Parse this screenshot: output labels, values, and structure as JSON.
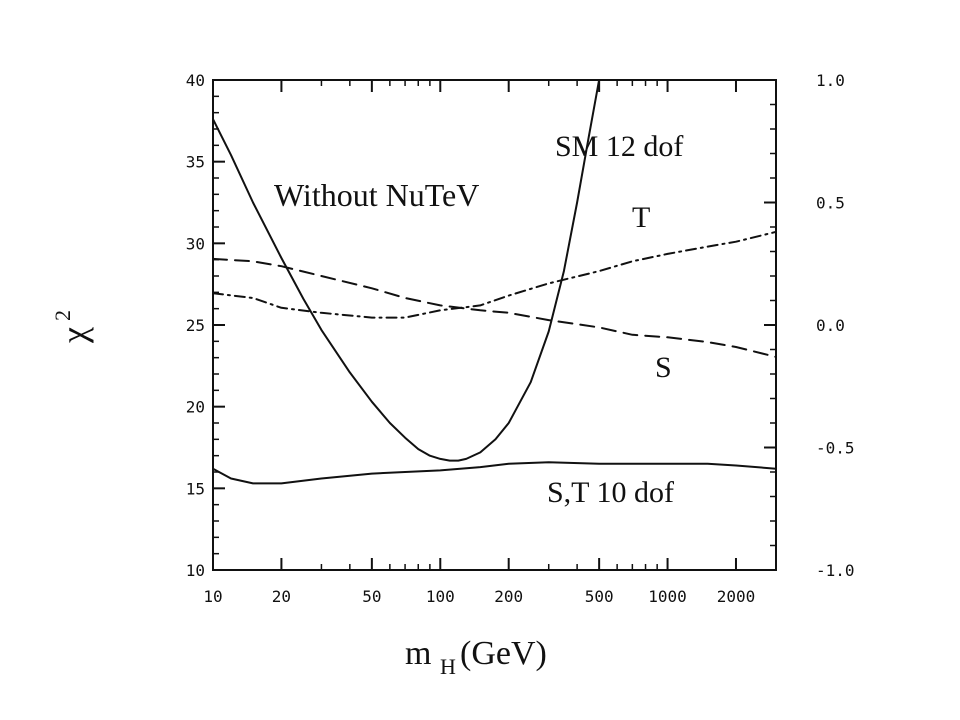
{
  "chart_data": {
    "type": "line",
    "title": "",
    "annotation_main": "Without NuTeV",
    "xlabel": "m_H(GeV)",
    "xlabel_main": "m",
    "xlabel_sub": "H",
    "xlabel_rest": "(GeV)",
    "ylabel": "χ²",
    "ylabel_main": "χ",
    "ylabel_sup": "2",
    "x_scale": "log",
    "xlim": [
      10,
      3000
    ],
    "ylim": [
      10,
      40
    ],
    "y2lim": [
      -1.0,
      1.0
    ],
    "x_ticks": [
      10,
      20,
      50,
      100,
      200,
      500,
      1000,
      2000
    ],
    "x_tick_labels": [
      "10",
      "20",
      "50",
      "100",
      "200",
      "500",
      "1000",
      "2000"
    ],
    "y_ticks": [
      10,
      15,
      20,
      25,
      30,
      35,
      40
    ],
    "y_tick_labels": [
      "10",
      "15",
      "20",
      "25",
      "30",
      "35",
      "40"
    ],
    "y2_ticks": [
      1.0,
      0.5,
      0.0,
      -0.5,
      -1.0
    ],
    "y2_tick_labels": [
      "1.0",
      "0.5",
      "0.0",
      "-0.5",
      "-1.0"
    ],
    "grid": false,
    "legend": "none",
    "series": [
      {
        "name": "SM 12 dof",
        "axis": "left",
        "style": "solid",
        "x": [
          10,
          12,
          15,
          20,
          25,
          30,
          40,
          50,
          60,
          70,
          80,
          90,
          100,
          110,
          120,
          130,
          150,
          175,
          200,
          250,
          300,
          350,
          400,
          450,
          500
        ],
        "y": [
          37.6,
          35.4,
          32.5,
          29.1,
          26.6,
          24.7,
          22.1,
          20.3,
          19.0,
          18.1,
          17.4,
          17.0,
          16.8,
          16.7,
          16.7,
          16.8,
          17.2,
          18.0,
          19.0,
          21.5,
          24.6,
          28.3,
          32.5,
          36.5,
          40.0
        ]
      },
      {
        "name": "S,T 10 dof",
        "axis": "left",
        "style": "solid",
        "x": [
          10,
          12,
          15,
          20,
          30,
          50,
          70,
          100,
          150,
          200,
          300,
          500,
          700,
          1000,
          1500,
          2000,
          3000
        ],
        "y": [
          16.2,
          15.6,
          15.3,
          15.3,
          15.6,
          15.9,
          16.0,
          16.1,
          16.3,
          16.5,
          16.6,
          16.5,
          16.5,
          16.5,
          16.5,
          16.4,
          16.2
        ]
      },
      {
        "name": "S",
        "axis": "right",
        "style": "dashed",
        "x": [
          10,
          15,
          20,
          30,
          50,
          70,
          100,
          150,
          200,
          300,
          500,
          700,
          1000,
          1500,
          2000,
          3000
        ],
        "y": [
          0.27,
          0.26,
          0.24,
          0.2,
          0.15,
          0.11,
          0.08,
          0.06,
          0.05,
          0.02,
          -0.01,
          -0.04,
          -0.05,
          -0.07,
          -0.09,
          -0.13
        ]
      },
      {
        "name": "T",
        "axis": "right",
        "style": "dash-dot",
        "x": [
          10,
          15,
          20,
          30,
          50,
          70,
          100,
          150,
          200,
          300,
          500,
          700,
          1000,
          1500,
          2000,
          3000
        ],
        "y": [
          0.13,
          0.11,
          0.07,
          0.05,
          0.03,
          0.03,
          0.06,
          0.08,
          0.12,
          0.17,
          0.22,
          0.26,
          0.29,
          0.32,
          0.34,
          0.38
        ]
      }
    ]
  }
}
